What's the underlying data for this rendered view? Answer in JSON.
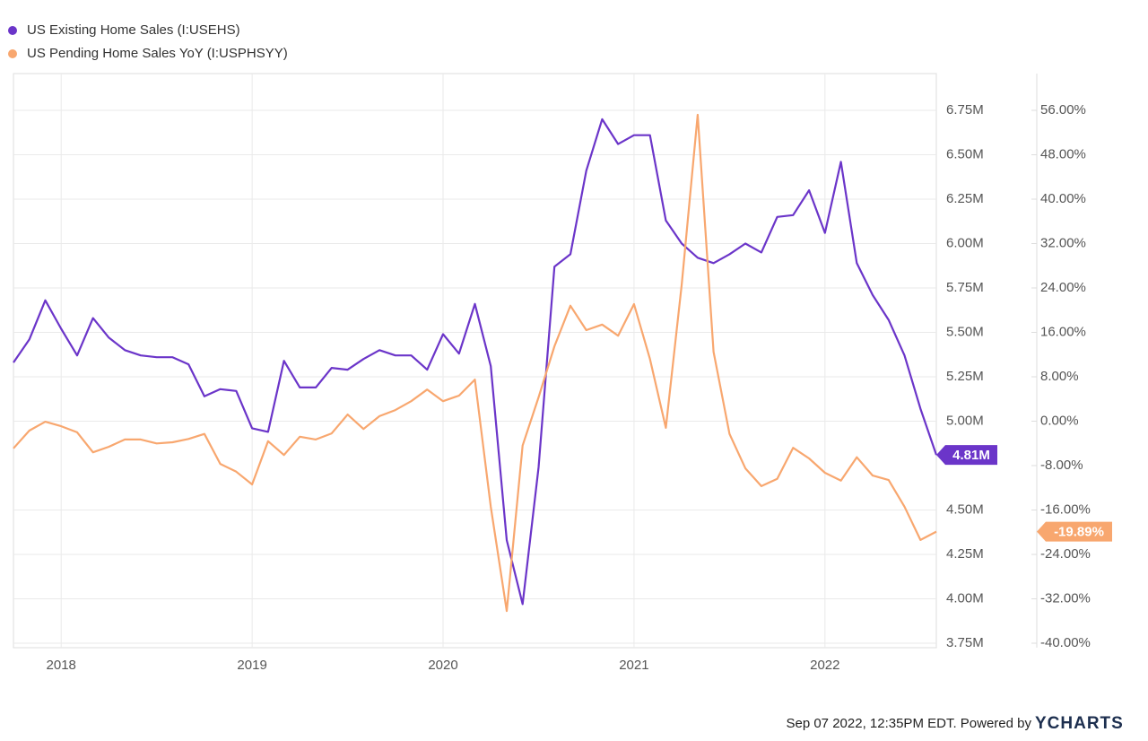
{
  "chart_data": {
    "type": "line",
    "x": [
      2017.75,
      2017.8333,
      2017.9167,
      2018,
      2018.0833,
      2018.1667,
      2018.25,
      2018.3333,
      2018.4167,
      2018.5,
      2018.5833,
      2018.6667,
      2018.75,
      2018.8333,
      2018.9167,
      2019,
      2019.0833,
      2019.1667,
      2019.25,
      2019.3333,
      2019.4167,
      2019.5,
      2019.5833,
      2019.6667,
      2019.75,
      2019.8333,
      2019.9167,
      2020,
      2020.0833,
      2020.1667,
      2020.25,
      2020.3333,
      2020.4167,
      2020.5,
      2020.5833,
      2020.6667,
      2020.75,
      2020.8333,
      2020.9167,
      2021,
      2021.0833,
      2021.1667,
      2021.25,
      2021.3333,
      2021.4167,
      2021.5,
      2021.5833,
      2021.6667,
      2021.75,
      2021.8333,
      2021.9167,
      2022,
      2022.0833,
      2022.1667,
      2022.25,
      2022.3333,
      2022.4167,
      2022.5,
      2022.5833
    ],
    "series": [
      {
        "name": "US Existing Home Sales (I:USEHS)",
        "color": "#6b35c9",
        "values": [
          5.33,
          5.46,
          5.68,
          5.52,
          5.37,
          5.58,
          5.47,
          5.4,
          5.37,
          5.36,
          5.36,
          5.32,
          5.14,
          5.18,
          5.17,
          4.96,
          4.94,
          5.34,
          5.19,
          5.19,
          5.3,
          5.29,
          5.35,
          5.4,
          5.37,
          5.37,
          5.29,
          5.49,
          5.38,
          5.66,
          5.31,
          4.33,
          3.97,
          4.74,
          5.87,
          5.94,
          6.41,
          6.7,
          6.56,
          6.61,
          6.61,
          6.13,
          6.0,
          5.92,
          5.89,
          5.94,
          6.0,
          5.95,
          6.15,
          6.16,
          6.3,
          6.06,
          6.46,
          5.89,
          5.71,
          5.57,
          5.37,
          5.07,
          4.81
        ],
        "value_labels": [
          null,
          null,
          null,
          null,
          null,
          null,
          null,
          null,
          null,
          null,
          null,
          null,
          null,
          null,
          null,
          null,
          null,
          null,
          null,
          null,
          null,
          null,
          null,
          null,
          null,
          null,
          null,
          null,
          null,
          null,
          null,
          null,
          null,
          null,
          null,
          null,
          null,
          null,
          null,
          null,
          null,
          null,
          null,
          null,
          null,
          null,
          null,
          null,
          null,
          null,
          null,
          null,
          null,
          null,
          null,
          null,
          null,
          null,
          "4.81M"
        ]
      },
      {
        "name": "US Pending Home Sales YoY (I:USPHSYY)",
        "color": "#f8a76f",
        "axis": "y2",
        "values": [
          -4.9,
          -1.7,
          -0.1,
          -0.9,
          -2.0,
          -5.6,
          -4.6,
          -3.3,
          -3.3,
          -4.0,
          -3.8,
          -3.2,
          -2.3,
          -7.7,
          -9.1,
          -11.4,
          -3.6,
          -6.1,
          -2.8,
          -3.3,
          -2.2,
          1.2,
          -1.4,
          0.9,
          2.0,
          3.6,
          5.7,
          3.6,
          4.6,
          7.5,
          -15.4,
          -34.2,
          -4.4,
          4.3,
          13.5,
          20.8,
          16.4,
          17.4,
          15.4,
          21.1,
          11.2,
          -1.2,
          24.6,
          55.2,
          12.5,
          -2.3,
          -8.5,
          -11.7,
          -10.4,
          -4.8,
          -6.7,
          -9.3,
          -10.7,
          -6.5,
          -9.8,
          -10.6,
          -15.4,
          -21.4,
          -19.89
        ],
        "value_labels": [
          null,
          null,
          null,
          null,
          null,
          null,
          null,
          null,
          null,
          null,
          null,
          null,
          null,
          null,
          null,
          null,
          null,
          null,
          null,
          null,
          null,
          null,
          null,
          null,
          null,
          null,
          null,
          null,
          null,
          null,
          null,
          null,
          null,
          null,
          null,
          null,
          null,
          null,
          null,
          null,
          null,
          null,
          null,
          null,
          null,
          null,
          null,
          null,
          null,
          null,
          null,
          null,
          null,
          null,
          null,
          null,
          null,
          null,
          "-19.89%"
        ]
      }
    ],
    "xlim": [
      2017.75,
      2022.5833
    ],
    "xticks": [
      2018,
      2019,
      2020,
      2021,
      2022
    ],
    "ylim": [
      3.7247,
      6.957
    ],
    "yticks": [
      {
        "value": 3.75,
        "label": "3.75M"
      },
      {
        "value": 4.0,
        "label": "4.00M"
      },
      {
        "value": 4.25,
        "label": "4.25M"
      },
      {
        "value": 4.5,
        "label": "4.50M"
      },
      {
        "value": 5.0,
        "label": "5.00M"
      },
      {
        "value": 5.25,
        "label": "5.25M"
      },
      {
        "value": 5.5,
        "label": "5.50M"
      },
      {
        "value": 5.75,
        "label": "5.75M"
      },
      {
        "value": 6.0,
        "label": "6.00M"
      },
      {
        "value": 6.25,
        "label": "6.25M"
      },
      {
        "value": 6.5,
        "label": "6.50M"
      },
      {
        "value": 6.75,
        "label": "6.75M"
      }
    ],
    "y2lim": [
      -40.81,
      62.63
    ],
    "y2ticks": [
      {
        "value": -40,
        "label": "-40.00%"
      },
      {
        "value": -32,
        "label": "-32.00%"
      },
      {
        "value": -24,
        "label": "-24.00%"
      },
      {
        "value": -16,
        "label": "-16.00%"
      },
      {
        "value": -8,
        "label": "-8.00%"
      },
      {
        "value": 0,
        "label": "0.00%"
      },
      {
        "value": 8,
        "label": "8.00%"
      },
      {
        "value": 16,
        "label": "16.00%"
      },
      {
        "value": 24,
        "label": "24.00%"
      },
      {
        "value": 32,
        "label": "32.00%"
      },
      {
        "value": 40,
        "label": "40.00%"
      },
      {
        "value": 48,
        "label": "48.00%"
      },
      {
        "value": 56,
        "label": "56.00%"
      }
    ],
    "grid": true,
    "legend": "top-left",
    "footer": "Sep 07 2022, 12:35PM EDT. Powered by",
    "brand": "YCHARTS"
  }
}
